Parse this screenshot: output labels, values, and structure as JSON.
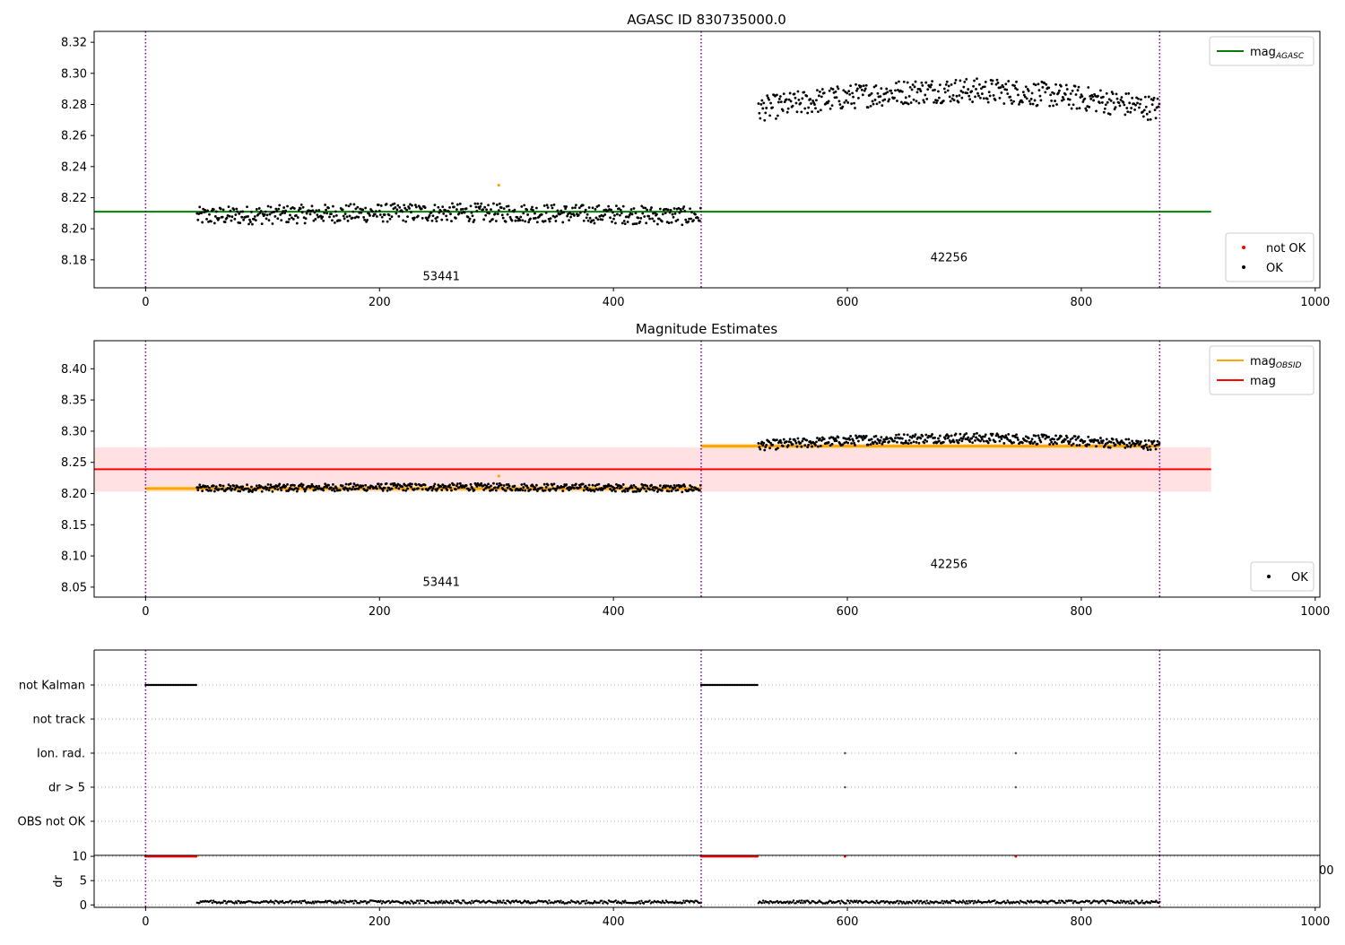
{
  "chart_data": [
    {
      "type": "scatter",
      "title": "AGASC ID 830735000.0",
      "xlim": [
        -44,
        1004
      ],
      "ylim": [
        8.162,
        8.327
      ],
      "x_ticks": [
        0,
        200,
        400,
        600,
        800,
        1000
      ],
      "y_ticks": [
        8.18,
        8.2,
        8.22,
        8.24,
        8.26,
        8.28,
        8.3,
        8.32
      ],
      "y_tick_labels": [
        "8.18",
        "8.20",
        "8.22",
        "8.24",
        "8.26",
        "8.28",
        "8.30",
        "8.32"
      ],
      "obs_boundaries": [
        0,
        475,
        867
      ],
      "obs_labels": [
        {
          "text": "53441",
          "x": 237,
          "y": 8.167
        },
        {
          "text": "42256",
          "x": 671,
          "y": 8.179
        }
      ],
      "reference_lines": [
        {
          "name": "mag_AGASC",
          "value": 8.211,
          "x": [
            -44,
            911
          ],
          "color": "#008000"
        }
      ],
      "segments": [
        {
          "x": [
            44,
            475
          ],
          "base": 8.208,
          "amp": 0.006,
          "noise": 0.006
        },
        {
          "x": [
            524,
            867
          ],
          "base": 8.277,
          "amp": 0.012,
          "noise": 0.008
        }
      ],
      "outliers": [
        {
          "x": 302,
          "y": 8.228,
          "color": "#FFA500"
        }
      ],
      "legends": [
        {
          "position": "upper-right",
          "entries": [
            {
              "label": "mag",
              "sub": "AGASC",
              "color": "#008000",
              "kind": "line"
            }
          ]
        },
        {
          "position": "lower-right",
          "entries": [
            {
              "label": "not OK",
              "color": "#FF0000",
              "kind": "marker"
            },
            {
              "label": "OK",
              "color": "#000000",
              "kind": "marker"
            }
          ]
        }
      ]
    },
    {
      "type": "scatter",
      "title": "Magnitude Estimates",
      "xlim": [
        -44,
        1004
      ],
      "ylim": [
        8.034,
        8.445
      ],
      "x_ticks": [
        0,
        200,
        400,
        600,
        800,
        1000
      ],
      "y_ticks": [
        8.05,
        8.1,
        8.15,
        8.2,
        8.25,
        8.3,
        8.35,
        8.4
      ],
      "y_tick_labels": [
        "8.05",
        "8.10",
        "8.15",
        "8.20",
        "8.25",
        "8.30",
        "8.35",
        "8.40"
      ],
      "obs_boundaries": [
        0,
        475,
        867
      ],
      "obs_labels": [
        {
          "text": "53441",
          "x": 237,
          "y": 8.052
        },
        {
          "text": "42256",
          "x": 671,
          "y": 8.081
        }
      ],
      "mag_obsid": [
        {
          "x": [
            0,
            475
          ],
          "value": 8.208,
          "band": 0.004
        },
        {
          "x": [
            475,
            867
          ],
          "value": 8.276,
          "band": 0.004
        }
      ],
      "mag": {
        "value": 8.239,
        "x": [
          -44,
          911
        ],
        "band": [
          8.203,
          8.274
        ]
      },
      "segments": [
        {
          "x": [
            44,
            475
          ],
          "base": 8.208,
          "amp": 0.006,
          "noise": 0.006
        },
        {
          "x": [
            524,
            867
          ],
          "base": 8.277,
          "amp": 0.012,
          "noise": 0.008
        }
      ],
      "outliers": [
        {
          "x": 302,
          "y": 8.228,
          "color": "#FFA500"
        }
      ],
      "colors": {
        "mag_obsid": "#FFA500",
        "mag": "#FF0000",
        "band": "#FFE1E4"
      },
      "legends": [
        {
          "position": "upper-right",
          "entries": [
            {
              "label": "mag",
              "sub": "OBSID",
              "color": "#FFA500",
              "kind": "line"
            },
            {
              "label": "mag",
              "sub": "",
              "color": "#FF0000",
              "kind": "line"
            }
          ]
        },
        {
          "position": "lower-right",
          "entries": [
            {
              "label": "OK",
              "color": "#000000",
              "kind": "marker"
            }
          ]
        }
      ]
    },
    {
      "type": "scatter",
      "title": "",
      "xlim": [
        -44,
        1004
      ],
      "categories": [
        "not Kalman",
        "not track",
        "Ion. rad.",
        "dr > 5",
        "OBS not OK"
      ],
      "flags": [
        {
          "category": "not Kalman",
          "ranges": [
            [
              0,
              44
            ],
            [
              475,
              524
            ]
          ]
        },
        {
          "category": "not track",
          "ranges": []
        },
        {
          "category": "Ion. rad.",
          "points": [
            598,
            744
          ]
        },
        {
          "category": "dr > 5",
          "points": [
            598,
            744
          ]
        },
        {
          "category": "OBS not OK",
          "ranges": []
        }
      ],
      "obs_boundaries": [
        0,
        475,
        867
      ]
    },
    {
      "type": "scatter",
      "title": "",
      "ylabel": "dr",
      "xlim": [
        -44,
        1004
      ],
      "ylim": [
        -0.5,
        10.2
      ],
      "x_ticks": [
        0,
        200,
        400,
        600,
        800,
        1000
      ],
      "y_ticks": [
        0,
        5,
        10
      ],
      "y_tick_labels": [
        "0",
        "5",
        "10"
      ],
      "capped_value": 10,
      "capped_ranges": [
        [
          0,
          44
        ],
        [
          475,
          524
        ]
      ],
      "capped_points": [
        598,
        744
      ],
      "segments": [
        [
          44,
          475
        ],
        [
          524,
          867
        ]
      ],
      "obs_boundaries": [
        0,
        475,
        867
      ],
      "right_edge_label": "00"
    }
  ],
  "colors": {
    "boundary": "#800080",
    "grid": "#b0b0b0"
  }
}
